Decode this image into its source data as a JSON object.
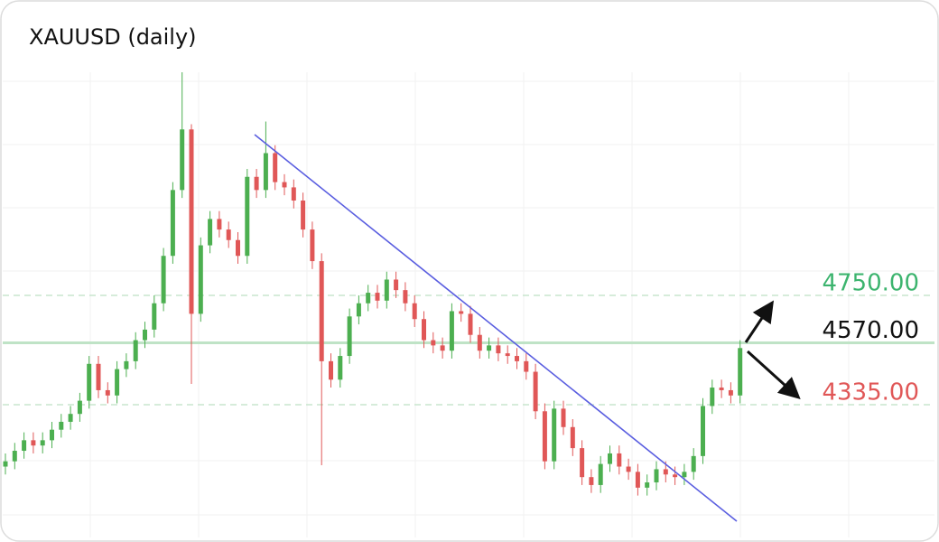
{
  "chart_data": {
    "type": "candlestick",
    "title": "XAUUSD (daily)",
    "ylim": [
      3848,
      5597
    ],
    "up_color": "#4caf50",
    "down_color": "#e05757",
    "open": [
      4100,
      4120,
      4160,
      4200,
      4180,
      4200,
      4240,
      4270,
      4300,
      4350,
      4490,
      4390,
      4370,
      4470,
      4500,
      4580,
      4620,
      4720,
      4900,
      5150,
      5380,
      4680,
      4940,
      5040,
      5000,
      4960,
      4900,
      5200,
      5150,
      5290,
      5180,
      5160,
      5110,
      5000,
      4880,
      4500,
      4430,
      4520,
      4670,
      4720,
      4760,
      4730,
      4810,
      4770,
      4720,
      4660,
      4580,
      4560,
      4540,
      4690,
      4680,
      4600,
      4540,
      4560,
      4530,
      4520,
      4500,
      4460,
      4310,
      4120,
      4320,
      4250,
      4170,
      4060,
      4030,
      4110,
      4150,
      4100,
      4080,
      4020,
      4040,
      4090,
      4070,
      4060,
      4080,
      4140,
      4330,
      4400,
      4390,
      4370
    ],
    "high": [
      4150,
      4190,
      4230,
      4230,
      4230,
      4270,
      4300,
      4330,
      4380,
      4520,
      4520,
      4420,
      4500,
      4530,
      4610,
      4650,
      4750,
      4930,
      5180,
      5597,
      5400,
      4970,
      5070,
      5070,
      5030,
      4990,
      5230,
      5230,
      5410,
      5320,
      5210,
      5190,
      5140,
      5030,
      4910,
      4530,
      4550,
      4700,
      4750,
      4790,
      4790,
      4840,
      4840,
      4800,
      4750,
      4690,
      4610,
      4590,
      4720,
      4720,
      4710,
      4630,
      4590,
      4590,
      4560,
      4550,
      4530,
      4490,
      4340,
      4350,
      4350,
      4280,
      4200,
      4090,
      4140,
      4180,
      4180,
      4130,
      4110,
      4070,
      4120,
      4120,
      4100,
      4110,
      4170,
      4360,
      4430,
      4430,
      4420,
      4580
    ],
    "low": [
      4070,
      4090,
      4130,
      4150,
      4150,
      4170,
      4210,
      4240,
      4270,
      4320,
      4360,
      4340,
      4340,
      4440,
      4470,
      4550,
      4590,
      4690,
      4870,
      5120,
      4414,
      4650,
      4910,
      4970,
      4930,
      4870,
      4870,
      5120,
      5120,
      5150,
      5130,
      5080,
      4970,
      4850,
      4105,
      4400,
      4400,
      4490,
      4640,
      4690,
      4700,
      4700,
      4740,
      4690,
      4630,
      4550,
      4530,
      4510,
      4510,
      4650,
      4570,
      4510,
      4510,
      4500,
      4490,
      4470,
      4430,
      4280,
      4090,
      4090,
      4220,
      4140,
      4030,
      4000,
      4000,
      4080,
      4070,
      4050,
      3990,
      3990,
      4010,
      4040,
      4030,
      4030,
      4050,
      4110,
      4300,
      4360,
      4340,
      4340
    ],
    "close": [
      4120,
      4160,
      4200,
      4180,
      4200,
      4240,
      4270,
      4300,
      4350,
      4490,
      4390,
      4370,
      4470,
      4500,
      4580,
      4620,
      4720,
      4900,
      5150,
      5380,
      4680,
      4940,
      5040,
      5000,
      4960,
      4900,
      5200,
      5150,
      5290,
      5180,
      5160,
      5110,
      5000,
      4880,
      4500,
      4430,
      4520,
      4670,
      4720,
      4760,
      4730,
      4810,
      4770,
      4720,
      4660,
      4580,
      4560,
      4540,
      4690,
      4680,
      4600,
      4540,
      4560,
      4530,
      4520,
      4500,
      4460,
      4310,
      4120,
      4320,
      4250,
      4170,
      4060,
      4030,
      4110,
      4150,
      4100,
      4080,
      4020,
      4040,
      4090,
      4070,
      4060,
      4080,
      4140,
      4330,
      4400,
      4390,
      4370,
      4550
    ],
    "levels": [
      {
        "value": 4750,
        "label": "4750.00",
        "color": "#3cb46e"
      },
      {
        "value": 4570,
        "label": "4570.00",
        "color": "#111111"
      },
      {
        "value": 4335,
        "label": "4335.00",
        "color": "#e05757"
      }
    ]
  }
}
